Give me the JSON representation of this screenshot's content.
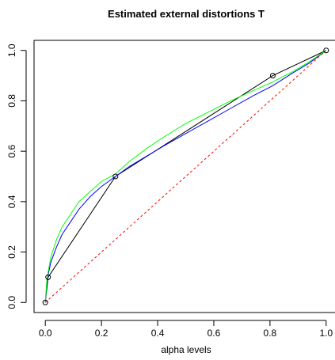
{
  "chart_data": {
    "type": "line",
    "title": "Estimated external distortions  T",
    "xlabel": "alpha levels",
    "ylabel": "",
    "xlim": [
      -0.04,
      1.04
    ],
    "ylim": [
      -0.04,
      1.04
    ],
    "xticks": [
      "0.0",
      "0.2",
      "0.4",
      "0.6",
      "0.8",
      "1.0"
    ],
    "yticks": [
      "0.0",
      "0.2",
      "0.4",
      "0.6",
      "0.8",
      "1.0"
    ],
    "xtick_values": [
      0.0,
      0.2,
      0.4,
      0.6,
      0.8,
      1.0
    ],
    "ytick_values": [
      0.0,
      0.2,
      0.4,
      0.6,
      0.8,
      1.0
    ],
    "grid": false,
    "legend": "none",
    "series": [
      {
        "style": "dashed",
        "color": "#ff0000",
        "x": [
          0,
          1
        ],
        "y": [
          0,
          1
        ]
      },
      {
        "style": "solid",
        "color": "#000000",
        "markers": "open-circle",
        "x": [
          0,
          0.01,
          0.25,
          0.81,
          1.0
        ],
        "y": [
          0,
          0.1,
          0.5,
          0.9,
          1.0
        ]
      },
      {
        "style": "solid",
        "color": "#0000ff",
        "x": [
          0,
          0.005,
          0.01,
          0.02,
          0.04,
          0.06,
          0.09,
          0.12,
          0.16,
          0.2,
          0.25,
          0.3,
          0.36,
          0.42,
          0.5,
          0.58,
          0.66,
          0.74,
          0.81,
          0.88,
          0.94,
          1.0
        ],
        "y": [
          0,
          0.07,
          0.11,
          0.16,
          0.22,
          0.27,
          0.32,
          0.37,
          0.42,
          0.46,
          0.5,
          0.54,
          0.58,
          0.62,
          0.67,
          0.72,
          0.77,
          0.82,
          0.86,
          0.91,
          0.95,
          1.0
        ]
      },
      {
        "style": "solid",
        "color": "#00ff00",
        "x": [
          0,
          0.005,
          0.01,
          0.02,
          0.04,
          0.06,
          0.09,
          0.12,
          0.16,
          0.2,
          0.25,
          0.3,
          0.36,
          0.42,
          0.5,
          0.58,
          0.66,
          0.74,
          0.81,
          0.88,
          0.94,
          1.0
        ],
        "y": [
          0,
          0.08,
          0.12,
          0.18,
          0.25,
          0.3,
          0.35,
          0.4,
          0.44,
          0.48,
          0.51,
          0.56,
          0.61,
          0.655,
          0.71,
          0.755,
          0.8,
          0.84,
          0.875,
          0.915,
          0.955,
          1.0
        ]
      }
    ]
  }
}
